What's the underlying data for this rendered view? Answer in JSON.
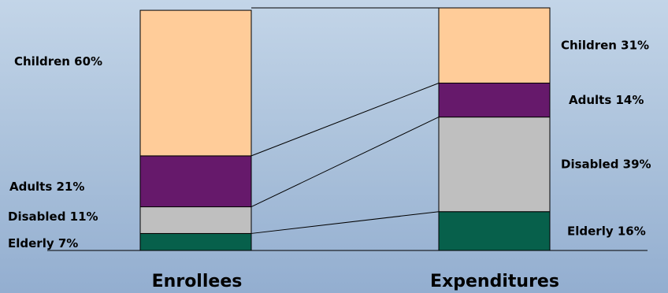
{
  "chart_data": {
    "type": "bar",
    "stacked": true,
    "title": "",
    "xlabel": "",
    "ylabel": "",
    "categories": [
      "Enrollees",
      "Expenditures"
    ],
    "ylim": [
      0,
      100
    ],
    "series": [
      {
        "key": "elderly",
        "labels": [
          "Elderly 7%",
          "Elderly 16%"
        ],
        "values": [
          7,
          16
        ],
        "color": "#07604b"
      },
      {
        "key": "disabled",
        "labels": [
          "Disabled 11%",
          "Disabled 39%"
        ],
        "values": [
          11,
          39
        ],
        "color": "#bfbfbf"
      },
      {
        "key": "adults",
        "labels": [
          "Adults 21%",
          "Adults  14%"
        ],
        "values": [
          21,
          14
        ],
        "color": "#66196b"
      },
      {
        "key": "children",
        "labels": [
          "Children 60%",
          "Children 31%"
        ],
        "values": [
          60,
          31
        ],
        "color": "#ffcc99"
      }
    ],
    "connector_lines": true,
    "legend": "none"
  }
}
